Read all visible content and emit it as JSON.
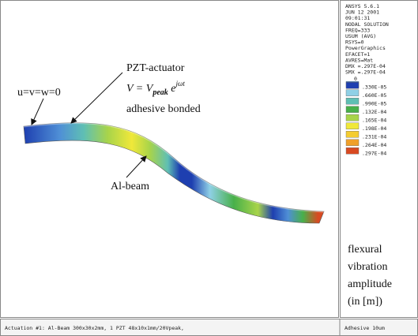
{
  "annotations": {
    "boundary": "u=v=w=0",
    "actuator": "PZT-actuator",
    "formula": {
      "lhs": "V = V",
      "subscript": "peak",
      "base": " e",
      "exponent": "jωt"
    },
    "bonding": "adhesive bonded",
    "beam": "Al-beam"
  },
  "info_lines": [
    "ANSYS 5.6.1",
    "JUN 12 2001",
    "09:01:31",
    "NODAL SOLUTION",
    "FREQ=333",
    "USUM     (AVG)",
    "RSYS=0",
    "PowerGraphics",
    "EFACET=1",
    "AVRES=Mat",
    "DMX =.297E-04",
    "SMX =.297E-04"
  ],
  "legend": [
    {
      "label": "0",
      "color": "#1e3fb0"
    },
    {
      "label": ".330E-05",
      "color": "#4f8fd6"
    },
    {
      "label": ".660E-05",
      "color": "#8fd0e6"
    },
    {
      "label": ".990E-05",
      "color": "#5fbfb4"
    },
    {
      "label": ".132E-04",
      "color": "#48b04a"
    },
    {
      "label": ".165E-04",
      "color": "#a8d44a"
    },
    {
      "label": ".198E-04",
      "color": "#f0e83a"
    },
    {
      "label": ".231E-04",
      "color": "#f4cc30"
    },
    {
      "label": ".264E-04",
      "color": "#f0a02a"
    },
    {
      "label": ".297E-04",
      "color": "#d84a22"
    }
  ],
  "caption": [
    "flexural",
    "vibration",
    "amplitude",
    "(in [m])"
  ],
  "footer": {
    "left": "Actuation #1: Al-Beam 300x30x2mm, 1 PZT 48x10x1mm/20Vpeak,",
    "right": "Adhesive 10um"
  }
}
